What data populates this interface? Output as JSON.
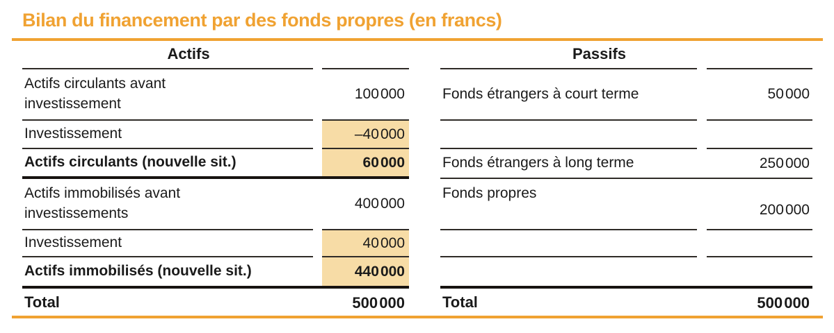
{
  "title": "Bilan du financement par des fonds propres (en francs)",
  "colors": {
    "accent_orange": "#F0A232",
    "highlight_tan": "#F7DCA6",
    "text": "#1A1A1A"
  },
  "tables": {
    "left": {
      "header": "Actifs",
      "rows": [
        {
          "label": "Actifs circulants avant\ninvestissement",
          "value": "100 000"
        },
        {
          "label": "Investissement",
          "value": "–40 000"
        },
        {
          "label": "Actifs circulants (nouvelle sit.)",
          "value": "60 000"
        },
        {
          "label": "Actifs immobilisés avant\ninvestissements",
          "value": "400 000"
        },
        {
          "label": "Investissement",
          "value": "40 000"
        },
        {
          "label": "Actifs immobilisés (nouvelle sit.)",
          "value": "440 000"
        }
      ],
      "total": {
        "label": "Total",
        "value": "500 000"
      }
    },
    "right": {
      "header": "Passifs",
      "rows": [
        {
          "label": "Fonds étrangers à court terme",
          "value": "50 000"
        },
        {
          "label": "",
          "value": ""
        },
        {
          "label": "Fonds étrangers à long terme",
          "value": "250 000"
        },
        {
          "label": "Fonds propres",
          "value": "200 000"
        },
        {
          "label": "",
          "value": ""
        },
        {
          "label": "",
          "value": ""
        }
      ],
      "total": {
        "label": "Total",
        "value": "500 000"
      }
    }
  }
}
